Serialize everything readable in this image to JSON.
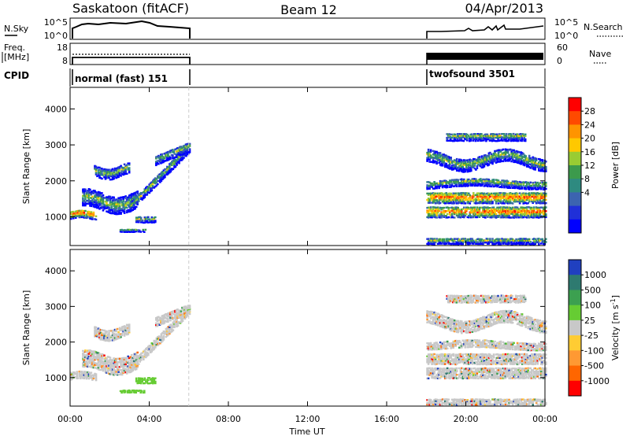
{
  "header": {
    "station": "Saskatoon (fitACF)",
    "beam": "Beam 12",
    "date": "04/Apr/2013"
  },
  "top_panels": {
    "nsky_label": "N.Sky",
    "nsearch_label": "N.Search",
    "noise_ticks": [
      "10^5",
      "10^0"
    ],
    "freq_label_1": "Freq.",
    "freq_label_2": "[MHz]",
    "freq_ticks": [
      "18",
      "8"
    ],
    "nave_label": "Nave",
    "nave_ticks": [
      "60",
      "0"
    ],
    "cpid_label": "CPID",
    "modes": [
      {
        "name": "normal (fast) 151",
        "start_hour": 0,
        "end_hour": 6
      },
      {
        "name": "twofsound 3501",
        "start_hour": 18,
        "end_hour": 24
      }
    ]
  },
  "chart_data": [
    {
      "type": "heatmap",
      "panel": "power",
      "ylabel": "Slant Range [km]",
      "xlabel": "Time UT",
      "x_ticks": [
        "00:00",
        "04:00",
        "08:00",
        "12:00",
        "16:00",
        "20:00",
        "00:00"
      ],
      "x_tick_hours": [
        0,
        4,
        8,
        12,
        16,
        20,
        24
      ],
      "xlim": [
        0,
        24
      ],
      "ylim": [
        200,
        4600
      ],
      "y_ticks": [
        1000,
        2000,
        3000,
        4000
      ],
      "colorbar": {
        "label": "Power [dB]",
        "ticks": [
          "28",
          "24",
          "20",
          "16",
          "12",
          "8",
          "4"
        ],
        "colors": [
          "#ff0000",
          "#ff4a00",
          "#ff9400",
          "#ffc800",
          "#99cc33",
          "#3c9a4c",
          "#2e8a80",
          "#3c64b0",
          "#2030d8",
          "#0000ff"
        ]
      },
      "data_segments_hours": [
        [
          0,
          6
        ],
        [
          18,
          24
        ]
      ]
    },
    {
      "type": "heatmap",
      "panel": "velocity",
      "ylabel": "Slant Range [km]",
      "xlabel": "Time UT",
      "x_ticks": [
        "00:00",
        "04:00",
        "08:00",
        "12:00",
        "16:00",
        "20:00",
        "00:00"
      ],
      "x_tick_hours": [
        0,
        4,
        8,
        12,
        16,
        20,
        24
      ],
      "xlim": [
        0,
        24
      ],
      "ylim": [
        200,
        4600
      ],
      "y_ticks": [
        1000,
        2000,
        3000,
        4000
      ],
      "colorbar": {
        "label": "Velocity [m s-1]",
        "label_main": "Velocity [m s",
        "label_sup": "-1",
        "label_end": "]",
        "ticks": [
          "1000",
          "500",
          "100",
          "25",
          "-25",
          "-100",
          "-500",
          "-1000"
        ],
        "colors": [
          "#2040c0",
          "#2e7a70",
          "#3ca050",
          "#66cc33",
          "#c8c8c8",
          "#ffcc33",
          "#ff9933",
          "#ff6600",
          "#ff0000"
        ]
      },
      "data_segments_hours": [
        [
          0,
          6
        ],
        [
          18,
          24
        ]
      ]
    }
  ]
}
